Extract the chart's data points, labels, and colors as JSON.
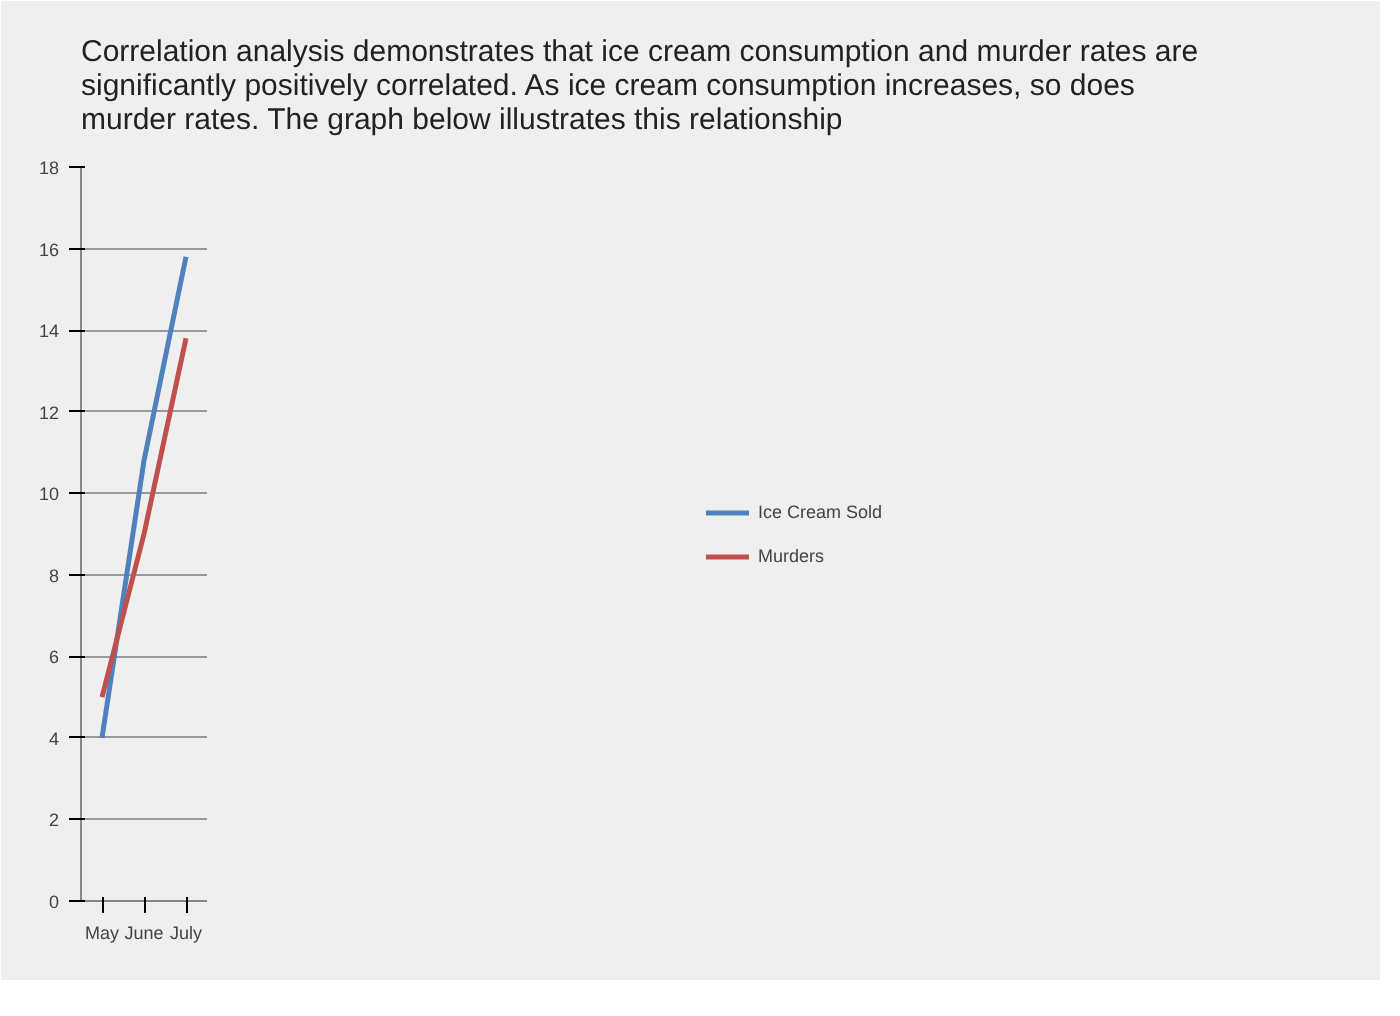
{
  "chart_data": {
    "type": "line",
    "title": "Correlation analysis demonstrates that ice cream consumption and murder rates are significantly positively correlated. As ice cream consumption increases, so does murder rates. The graph below illustrates this relationship",
    "categories": [
      "May",
      "June",
      "July"
    ],
    "series": [
      {
        "name": "Ice Cream Sold",
        "color": "#4f81bd",
        "values": [
          4,
          10.8,
          15.8
        ]
      },
      {
        "name": "Murders",
        "color": "#c0504d",
        "values": [
          5,
          9,
          13.8
        ]
      }
    ],
    "ylim": [
      0,
      18
    ],
    "yticks": [
      0,
      2,
      4,
      6,
      8,
      10,
      12,
      14,
      16,
      18
    ],
    "grid": "y",
    "legend": "right",
    "marker": "none",
    "line_style": "solid"
  }
}
